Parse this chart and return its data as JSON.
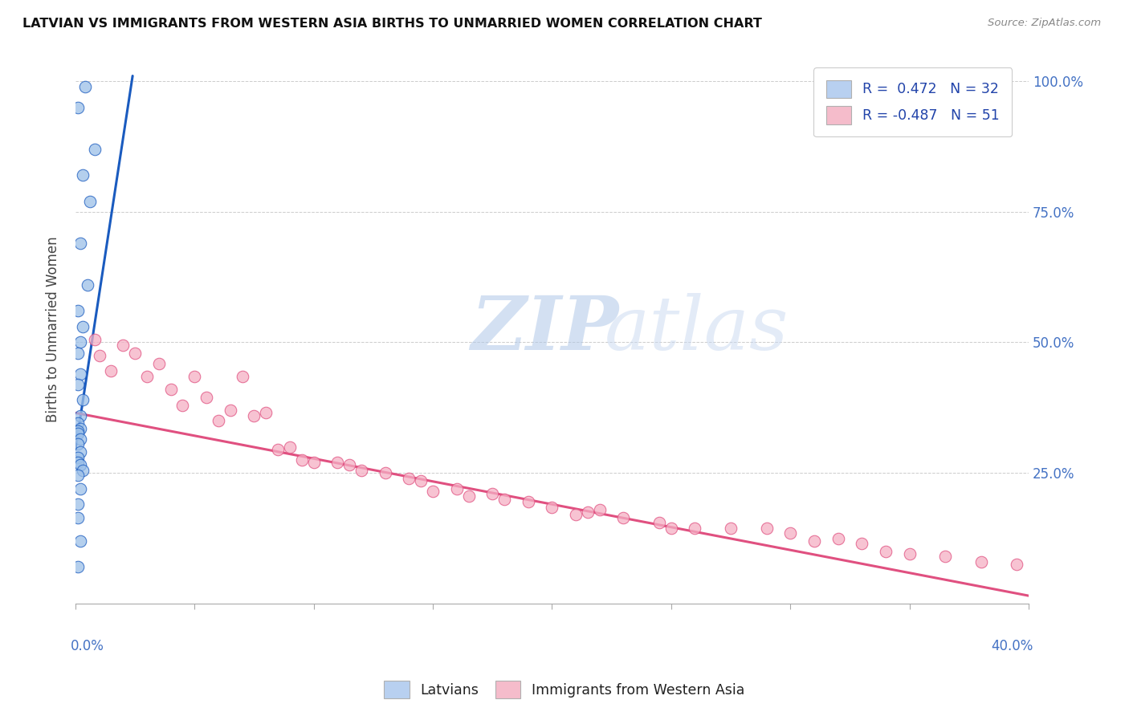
{
  "title": "LATVIAN VS IMMIGRANTS FROM WESTERN ASIA BIRTHS TO UNMARRIED WOMEN CORRELATION CHART",
  "source": "Source: ZipAtlas.com",
  "ylabel": "Births to Unmarried Women",
  "legend1_label": "R =  0.472   N = 32",
  "legend2_label": "R = -0.487   N = 51",
  "legend1_color": "#b8d0f0",
  "legend2_color": "#f5bccb",
  "dot_color_latvian": "#9bbfe8",
  "dot_color_immigrant": "#f5afc4",
  "line_color_latvian": "#1a5bbf",
  "line_color_immigrant": "#e05080",
  "watermark_zip": "ZIP",
  "watermark_atlas": "atlas",
  "xmin": 0.0,
  "xmax": 0.4,
  "ymin": 0.0,
  "ymax": 1.05,
  "ytick_vals": [
    0.0,
    0.25,
    0.5,
    0.75,
    1.0
  ],
  "ytick_labels": [
    "",
    "25.0%",
    "50.0%",
    "75.0%",
    "100.0%"
  ],
  "xtick_vals": [
    0.0,
    0.05,
    0.1,
    0.15,
    0.2,
    0.25,
    0.3,
    0.35,
    0.4
  ],
  "blue_line_x": [
    0.0,
    0.024
  ],
  "blue_line_y": [
    0.295,
    1.01
  ],
  "pink_line_x": [
    0.0,
    0.4
  ],
  "pink_line_y": [
    0.365,
    0.015
  ],
  "latvians_x": [
    0.004,
    0.001,
    0.008,
    0.003,
    0.006,
    0.002,
    0.005,
    0.001,
    0.003,
    0.002,
    0.001,
    0.002,
    0.001,
    0.003,
    0.002,
    0.001,
    0.002,
    0.001,
    0.001,
    0.002,
    0.001,
    0.002,
    0.001,
    0.001,
    0.002,
    0.003,
    0.001,
    0.002,
    0.001,
    0.001,
    0.002,
    0.001
  ],
  "latvians_y": [
    0.99,
    0.95,
    0.87,
    0.82,
    0.77,
    0.69,
    0.61,
    0.56,
    0.53,
    0.5,
    0.48,
    0.44,
    0.42,
    0.39,
    0.36,
    0.345,
    0.335,
    0.33,
    0.325,
    0.315,
    0.305,
    0.29,
    0.28,
    0.27,
    0.265,
    0.255,
    0.245,
    0.22,
    0.19,
    0.165,
    0.12,
    0.07
  ],
  "immigrants_x": [
    0.008,
    0.02,
    0.025,
    0.01,
    0.035,
    0.015,
    0.03,
    0.04,
    0.05,
    0.045,
    0.055,
    0.07,
    0.065,
    0.06,
    0.08,
    0.075,
    0.09,
    0.085,
    0.1,
    0.095,
    0.115,
    0.12,
    0.13,
    0.14,
    0.11,
    0.145,
    0.16,
    0.15,
    0.175,
    0.165,
    0.19,
    0.18,
    0.2,
    0.215,
    0.23,
    0.21,
    0.22,
    0.245,
    0.26,
    0.25,
    0.275,
    0.29,
    0.3,
    0.32,
    0.31,
    0.34,
    0.33,
    0.35,
    0.365,
    0.38,
    0.395
  ],
  "immigrants_y": [
    0.505,
    0.495,
    0.48,
    0.475,
    0.46,
    0.445,
    0.435,
    0.41,
    0.435,
    0.38,
    0.395,
    0.435,
    0.37,
    0.35,
    0.365,
    0.36,
    0.3,
    0.295,
    0.27,
    0.275,
    0.265,
    0.255,
    0.25,
    0.24,
    0.27,
    0.235,
    0.22,
    0.215,
    0.21,
    0.205,
    0.195,
    0.2,
    0.185,
    0.175,
    0.165,
    0.17,
    0.18,
    0.155,
    0.145,
    0.145,
    0.145,
    0.145,
    0.135,
    0.125,
    0.12,
    0.1,
    0.115,
    0.095,
    0.09,
    0.08,
    0.075
  ]
}
